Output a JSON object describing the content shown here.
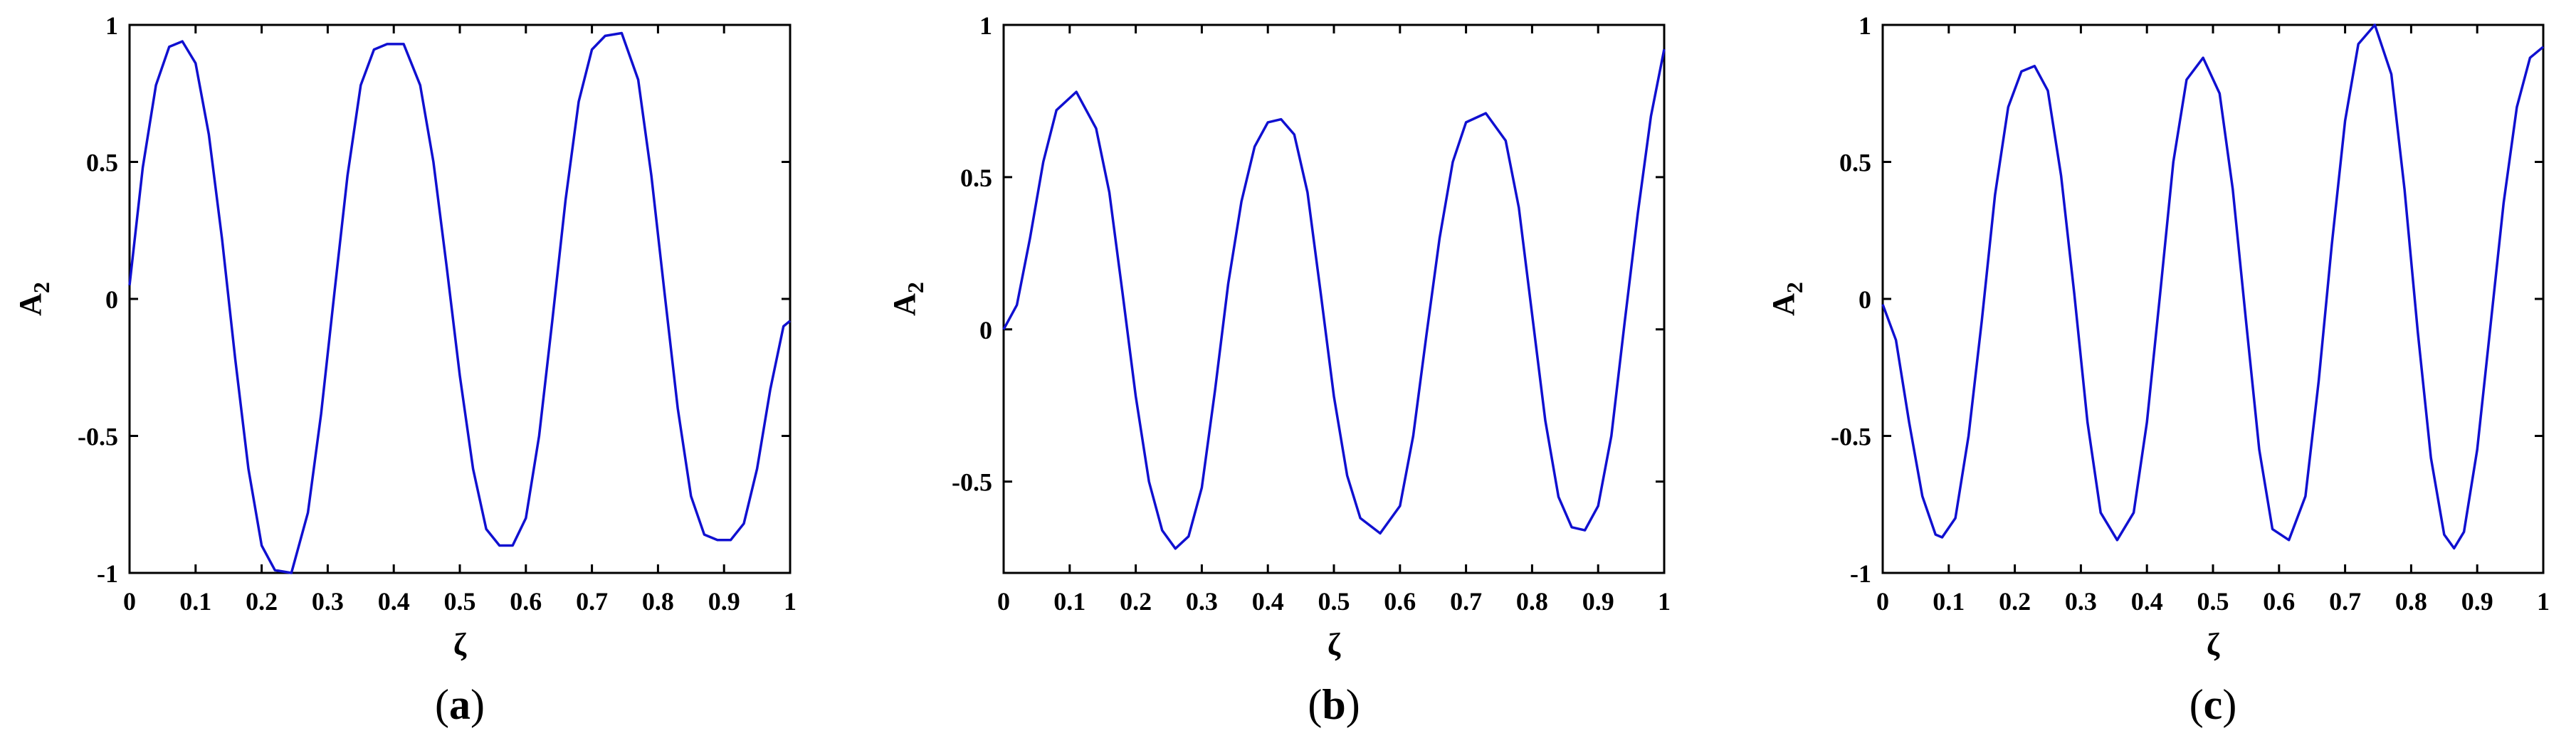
{
  "chart_data": [
    {
      "type": "line",
      "panel_label": "a",
      "xlabel": "ζ",
      "ylabel": "A",
      "ylabel_sub": "2",
      "xlim": [
        0,
        1
      ],
      "ylim": [
        -1,
        1
      ],
      "xticks": [
        0,
        0.1,
        0.2,
        0.3,
        0.4,
        0.5,
        0.6,
        0.7,
        0.8,
        0.9,
        1
      ],
      "yticks": [
        -1,
        -0.5,
        0,
        0.5,
        1
      ],
      "xtick_labels": [
        "0",
        "0.1",
        "0.2",
        "0.3",
        "0.4",
        "0.5",
        "0.6",
        "0.7",
        "0.8",
        "0.9",
        "1"
      ],
      "ytick_labels": [
        "-1",
        "-0.5",
        "0",
        "0.5",
        "1"
      ],
      "color": "#1010d0",
      "series": [
        {
          "x": [
            0,
            0.02,
            0.04,
            0.06,
            0.08,
            0.1,
            0.12,
            0.14,
            0.16,
            0.18,
            0.2,
            0.22,
            0.245,
            0.27,
            0.29,
            0.31,
            0.33,
            0.35,
            0.37,
            0.39,
            0.415,
            0.44,
            0.46,
            0.48,
            0.5,
            0.52,
            0.54,
            0.56,
            0.58,
            0.6,
            0.62,
            0.64,
            0.66,
            0.68,
            0.7,
            0.72,
            0.745,
            0.77,
            0.79,
            0.81,
            0.83,
            0.85,
            0.87,
            0.89,
            0.91,
            0.93,
            0.95,
            0.97,
            0.99,
            1.0
          ],
          "y": [
            0.05,
            0.48,
            0.78,
            0.92,
            0.94,
            0.86,
            0.6,
            0.22,
            -0.22,
            -0.62,
            -0.9,
            -0.99,
            -1.0,
            -0.78,
            -0.42,
            0.02,
            0.45,
            0.78,
            0.91,
            0.93,
            0.93,
            0.78,
            0.5,
            0.12,
            -0.28,
            -0.62,
            -0.84,
            -0.9,
            -0.9,
            -0.8,
            -0.5,
            -0.08,
            0.36,
            0.72,
            0.91,
            0.96,
            0.97,
            0.8,
            0.45,
            0.02,
            -0.4,
            -0.72,
            -0.86,
            -0.88,
            -0.88,
            -0.82,
            -0.62,
            -0.33,
            -0.1,
            -0.08
          ]
        }
      ]
    },
    {
      "type": "line",
      "panel_label": "b",
      "xlabel": "ζ",
      "ylabel": "A",
      "ylabel_sub": "2",
      "xlim": [
        0,
        1
      ],
      "ylim": [
        -0.8,
        1
      ],
      "xticks": [
        0,
        0.1,
        0.2,
        0.3,
        0.4,
        0.5,
        0.6,
        0.7,
        0.8,
        0.9,
        1
      ],
      "yticks": [
        -0.5,
        0,
        0.5,
        1
      ],
      "xtick_labels": [
        "0",
        "0.1",
        "0.2",
        "0.3",
        "0.4",
        "0.5",
        "0.6",
        "0.7",
        "0.8",
        "0.9",
        "1"
      ],
      "ytick_labels": [
        "-0.5",
        "0",
        "0.5",
        "1"
      ],
      "color": "#1010d0",
      "series": [
        {
          "x": [
            0,
            0.02,
            0.04,
            0.06,
            0.08,
            0.11,
            0.14,
            0.16,
            0.18,
            0.2,
            0.22,
            0.24,
            0.26,
            0.28,
            0.3,
            0.32,
            0.34,
            0.36,
            0.38,
            0.4,
            0.42,
            0.44,
            0.46,
            0.48,
            0.5,
            0.52,
            0.54,
            0.57,
            0.6,
            0.62,
            0.64,
            0.66,
            0.68,
            0.7,
            0.73,
            0.76,
            0.78,
            0.8,
            0.82,
            0.84,
            0.86,
            0.88,
            0.9,
            0.92,
            0.94,
            0.96,
            0.98,
            1.0
          ],
          "y": [
            0.0,
            0.08,
            0.3,
            0.55,
            0.72,
            0.78,
            0.66,
            0.45,
            0.12,
            -0.22,
            -0.5,
            -0.66,
            -0.72,
            -0.68,
            -0.52,
            -0.2,
            0.15,
            0.42,
            0.6,
            0.68,
            0.69,
            0.64,
            0.45,
            0.12,
            -0.22,
            -0.48,
            -0.62,
            -0.67,
            -0.58,
            -0.35,
            -0.02,
            0.3,
            0.55,
            0.68,
            0.71,
            0.62,
            0.4,
            0.05,
            -0.3,
            -0.55,
            -0.65,
            -0.66,
            -0.58,
            -0.35,
            0.02,
            0.38,
            0.7,
            0.92
          ]
        }
      ]
    },
    {
      "type": "line",
      "panel_label": "c",
      "xlabel": "ζ",
      "ylabel": "A",
      "ylabel_sub": "2",
      "xlim": [
        0,
        1
      ],
      "ylim": [
        -1,
        1
      ],
      "xticks": [
        0,
        0.1,
        0.2,
        0.3,
        0.4,
        0.5,
        0.6,
        0.7,
        0.8,
        0.9,
        1
      ],
      "yticks": [
        -1,
        -0.5,
        0,
        0.5,
        1
      ],
      "xtick_labels": [
        "0",
        "0.1",
        "0.2",
        "0.3",
        "0.4",
        "0.5",
        "0.6",
        "0.7",
        "0.8",
        "0.9",
        "1"
      ],
      "ytick_labels": [
        "-1",
        "-0.5",
        "0",
        "0.5",
        "1"
      ],
      "color": "#1010d0",
      "series": [
        {
          "x": [
            0,
            0.02,
            0.04,
            0.06,
            0.08,
            0.09,
            0.11,
            0.13,
            0.15,
            0.17,
            0.19,
            0.21,
            0.23,
            0.25,
            0.27,
            0.29,
            0.31,
            0.33,
            0.355,
            0.38,
            0.4,
            0.42,
            0.44,
            0.46,
            0.485,
            0.51,
            0.53,
            0.55,
            0.57,
            0.59,
            0.615,
            0.64,
            0.66,
            0.68,
            0.7,
            0.72,
            0.745,
            0.77,
            0.79,
            0.81,
            0.83,
            0.85,
            0.865,
            0.88,
            0.9,
            0.92,
            0.94,
            0.96,
            0.98,
            1.0
          ],
          "y": [
            -0.02,
            -0.15,
            -0.45,
            -0.72,
            -0.86,
            -0.87,
            -0.8,
            -0.5,
            -0.08,
            0.38,
            0.7,
            0.83,
            0.85,
            0.76,
            0.45,
            0.02,
            -0.45,
            -0.78,
            -0.88,
            -0.78,
            -0.45,
            0.02,
            0.5,
            0.8,
            0.88,
            0.75,
            0.4,
            -0.08,
            -0.55,
            -0.84,
            -0.88,
            -0.72,
            -0.3,
            0.2,
            0.65,
            0.93,
            1.0,
            0.82,
            0.4,
            -0.12,
            -0.58,
            -0.86,
            -0.91,
            -0.85,
            -0.55,
            -0.1,
            0.35,
            0.7,
            0.88,
            0.92
          ]
        }
      ]
    }
  ]
}
